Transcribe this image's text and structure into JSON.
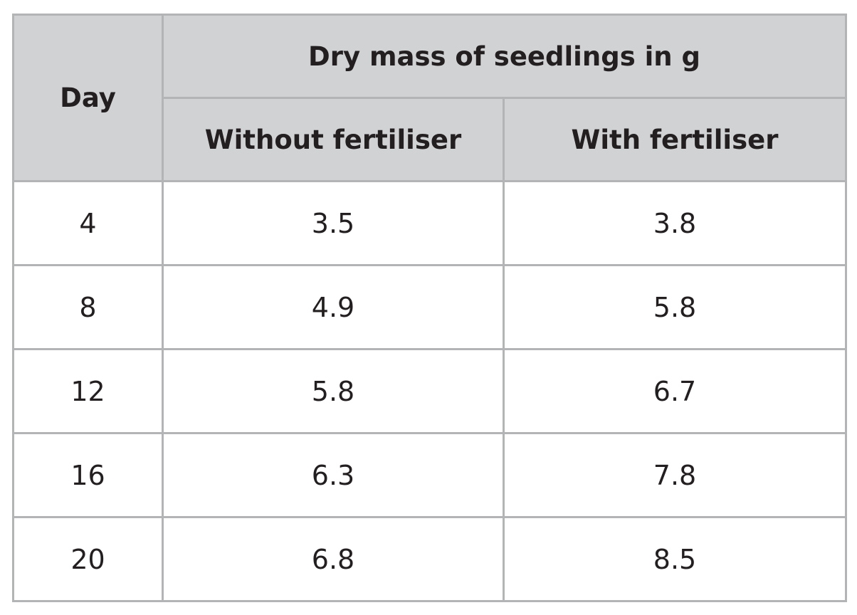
{
  "table": {
    "header": {
      "day_label": "Day",
      "group_label": "Dry mass of seedlings in g",
      "sub_labels": [
        "Without fertiliser",
        "With fertiliser"
      ]
    },
    "rows": [
      {
        "day": "4",
        "without": "3.5",
        "with": "3.8"
      },
      {
        "day": "8",
        "without": "4.9",
        "with": "5.8"
      },
      {
        "day": "12",
        "without": "5.8",
        "with": "6.7"
      },
      {
        "day": "16",
        "without": "6.3",
        "with": "7.8"
      },
      {
        "day": "20",
        "without": "6.8",
        "with": "8.5"
      }
    ]
  }
}
